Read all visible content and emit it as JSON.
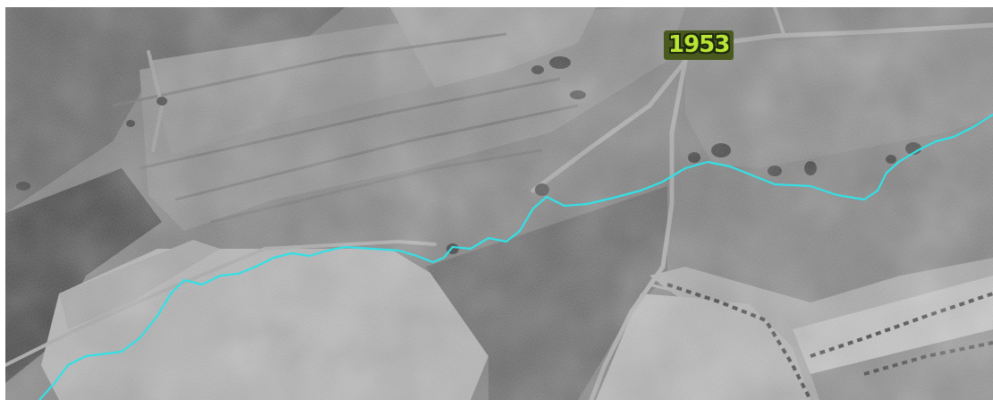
{
  "map": {
    "year_label": "1953",
    "label_fill": "#b9e634",
    "label_outline": "#1f2a10",
    "label_background": "#4a5a1e",
    "stream_color": "#33e0e6"
  }
}
